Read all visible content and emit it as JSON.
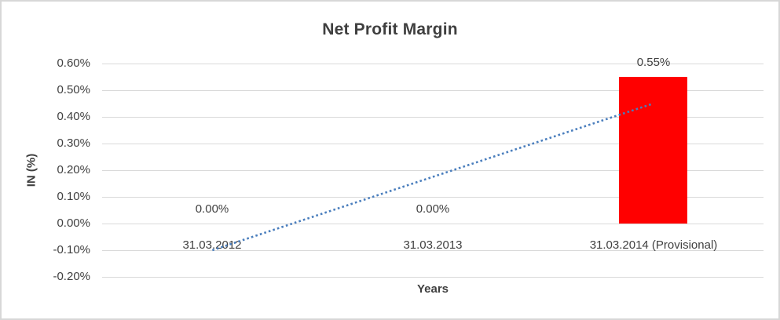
{
  "chart_data": {
    "type": "bar",
    "title": "Net Profit Margin",
    "xlabel": "Years",
    "ylabel": "IN (%)",
    "categories": [
      "31.03.2012",
      "31.03.2013",
      "31.03.2014 (Provisional)"
    ],
    "values": [
      0.0,
      0.0,
      0.55
    ],
    "data_labels": [
      "0.00%",
      "0.00%",
      "0.55%"
    ],
    "ylim": [
      -0.2,
      0.6
    ],
    "ytick_step": 0.1,
    "ytick_labels": [
      "0.60%",
      "0.50%",
      "0.40%",
      "0.30%",
      "0.20%",
      "0.10%",
      "0.00%",
      "-0.10%",
      "-0.20%"
    ],
    "grid": true,
    "legend_position": "none",
    "colors": {
      "bar": "#ff0000",
      "trendline": "#4a7ebd",
      "gridline": "#d9d9d9",
      "text": "#404040",
      "title_text": "#3f3f3f",
      "frame_border": "#d7d7d7"
    },
    "trendline": {
      "type": "linear",
      "style": "dotted",
      "start_value": -0.1,
      "end_value": 0.45
    }
  }
}
